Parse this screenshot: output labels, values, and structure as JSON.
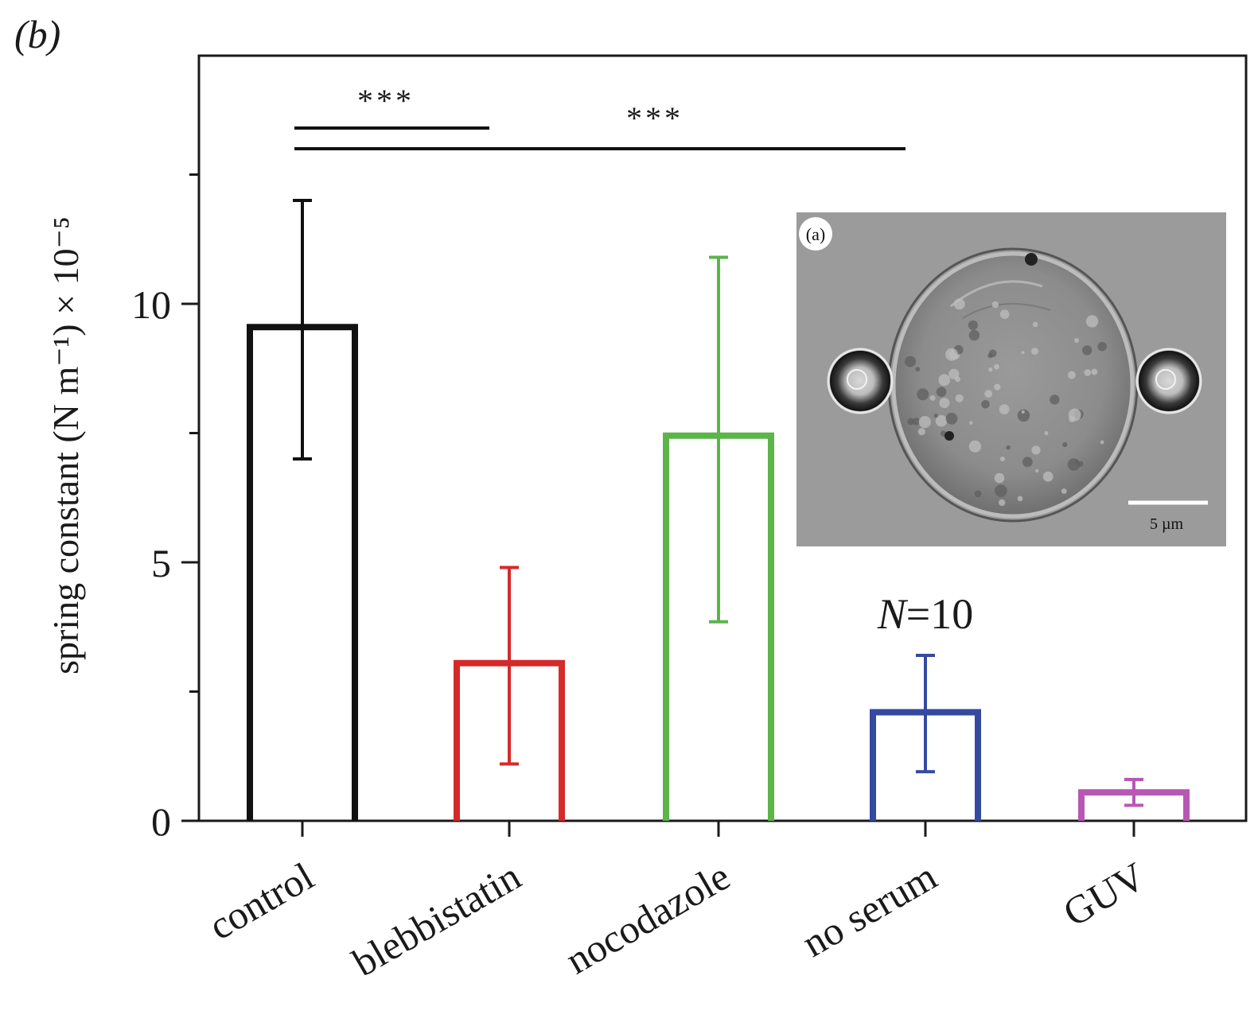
{
  "panel_label": "(b)",
  "chart_data": {
    "type": "bar",
    "style": "outlined bars with error bars",
    "categories": [
      "control",
      "blebbistatin",
      "nocodazole",
      "no serum",
      "GUV"
    ],
    "values": [
      9.55,
      3.05,
      7.45,
      2.1,
      0.55
    ],
    "error_high": [
      12.0,
      4.9,
      10.9,
      3.2,
      0.8
    ],
    "error_low": [
      7.0,
      1.1,
      3.85,
      0.95,
      0.3
    ],
    "colors": [
      "#111111",
      "#d42a2a",
      "#5bb548",
      "#344aa0",
      "#b857b4"
    ],
    "ylabel": "spring constant (N m⁻¹) × 10⁻⁵",
    "ylim": [
      0,
      14.8
    ],
    "yticks": [
      0,
      5,
      10
    ],
    "yminor": [
      2.5,
      7.5,
      12.5
    ],
    "grid": false,
    "significance": [
      {
        "from": "control",
        "to": "blebbistatin",
        "label": "***",
        "y": 13.4
      },
      {
        "from": "control",
        "to": "no serum",
        "label": "***",
        "y": 13.0
      }
    ],
    "annotation": "N = 10"
  },
  "inset": {
    "label": "(a)",
    "scale_bar_label": "5 µm"
  }
}
